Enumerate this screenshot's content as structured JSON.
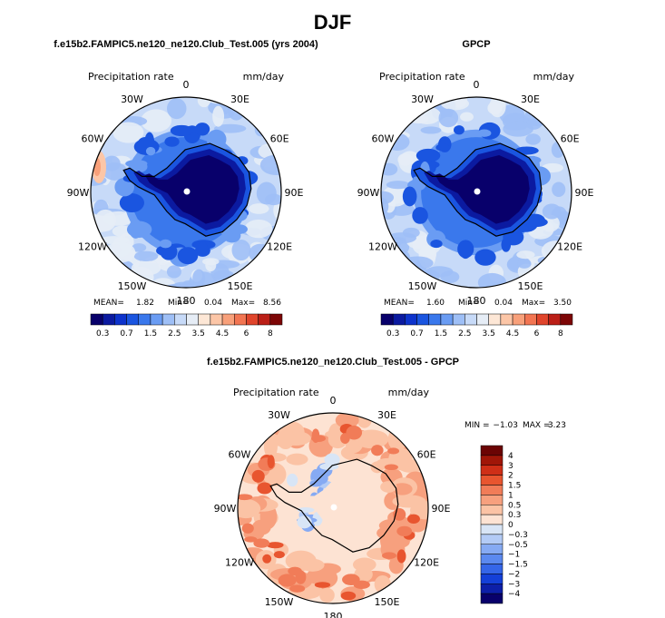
{
  "page_title": "DJF",
  "colors": {
    "seq_levels": [
      "#08006b",
      "#0b1aa0",
      "#0d33cc",
      "#1a55e0",
      "#3a78ec",
      "#6a9cf3",
      "#9ebff6",
      "#c7daf8",
      "#e6edf6",
      "#fde7d6",
      "#fcc6a7",
      "#f8a07a",
      "#f27552",
      "#e0452c",
      "#bb1f17",
      "#7d0606"
    ],
    "diff_levels": [
      "#08006b",
      "#0d1fa8",
      "#1440d8",
      "#3566e8",
      "#5b89ef",
      "#86aaf3",
      "#b3cbf6",
      "#d8e5f6",
      "#fde3d3",
      "#fbc3a5",
      "#f7a07e",
      "#f17c58",
      "#e8552f",
      "#cf2f17",
      "#a01608",
      "#6b0404"
    ],
    "ocean_ring": "#c9dcf7",
    "ice_edge": "#0d33cc",
    "continent": "#0a0a7a",
    "coast": "#000000"
  },
  "chart_data": [
    {
      "type": "polar_contour_map",
      "title": "f.e15b2.FAMPIC5.ne120_ne120.Club_Test.005 (yrs 2004)",
      "variable": "Precipitation rate",
      "units": "mm/day",
      "projection": "south_polar_stereographic",
      "lon_labels": [
        "0",
        "30E",
        "60E",
        "90E",
        "120E",
        "150E",
        "180",
        "150W",
        "120W",
        "90W",
        "60W",
        "30W"
      ],
      "stats": {
        "mean_label": "MEAN=",
        "mean": "1.82",
        "min_label": "Min=",
        "min": "0.04",
        "max_label": "Max=",
        "max": "8.56"
      },
      "colorbar": {
        "tick_labels": [
          "0.3",
          "0.7",
          "1.5",
          "2.5",
          "3.5",
          "4.5",
          "6",
          "8"
        ]
      }
    },
    {
      "type": "polar_contour_map",
      "title": "GPCP",
      "variable": "Precipitation rate",
      "units": "mm/day",
      "projection": "south_polar_stereographic",
      "lon_labels": [
        "0",
        "30E",
        "60E",
        "90E",
        "120E",
        "150E",
        "180",
        "150W",
        "120W",
        "90W",
        "60W",
        "30W"
      ],
      "stats": {
        "mean_label": "MEAN=",
        "mean": "1.60",
        "min_label": "Min=",
        "min": "0.04",
        "max_label": "Max=",
        "max": "3.50"
      },
      "colorbar": {
        "tick_labels": [
          "0.3",
          "0.7",
          "1.5",
          "2.5",
          "3.5",
          "4.5",
          "6",
          "8"
        ]
      }
    },
    {
      "type": "polar_contour_map",
      "title": "f.e15b2.FAMPIC5.ne120_ne120.Club_Test.005 - GPCP",
      "variable": "Precipitation rate",
      "units": "mm/day",
      "projection": "south_polar_stereographic",
      "lon_labels": [
        "0",
        "30E",
        "60E",
        "90E",
        "120E",
        "150E",
        "180",
        "150W",
        "120W",
        "90W",
        "60W",
        "30W"
      ],
      "stats": {
        "min_label": "MIN =",
        "min": "−1.03",
        "max_label": "MAX =",
        "max": "3.23"
      },
      "colorbar": {
        "orientation": "vertical",
        "tick_labels": [
          "4",
          "3",
          "2",
          "1.5",
          "1",
          "0.5",
          "0.3",
          "0",
          "−0.3",
          "−0.5",
          "−1",
          "−1.5",
          "−2",
          "−3",
          "−4"
        ]
      }
    }
  ]
}
